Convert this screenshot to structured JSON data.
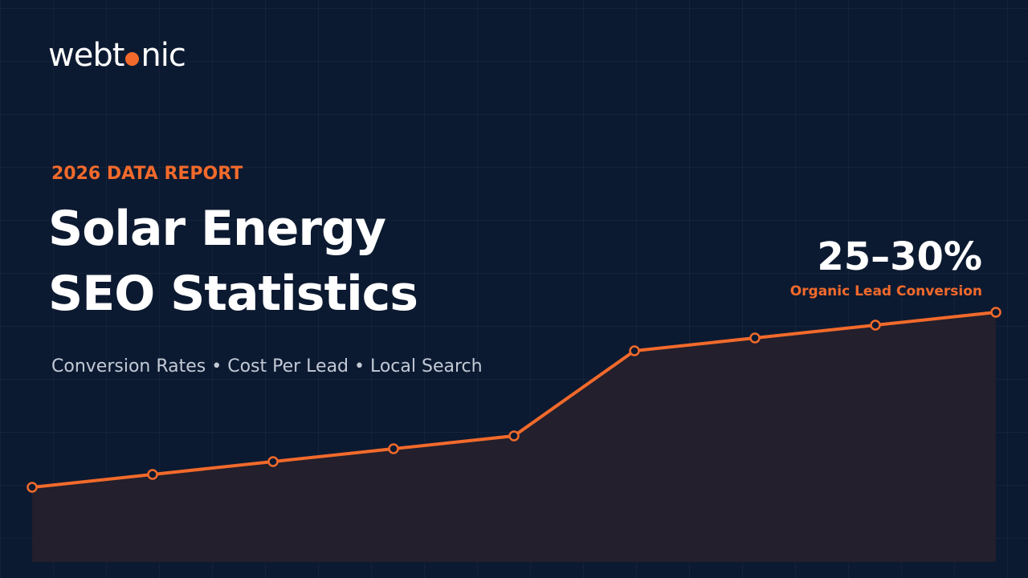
{
  "logo": {
    "left": "webt",
    "right": "nic"
  },
  "kicker": "2026 DATA REPORT",
  "title": {
    "line1": "Solar Energy",
    "line2": "SEO Statistics"
  },
  "subtitle": "Conversion Rates • Cost Per Lead • Local Search",
  "highlight": {
    "value": "25–30%",
    "caption": "Organic Lead Conversion"
  }
}
